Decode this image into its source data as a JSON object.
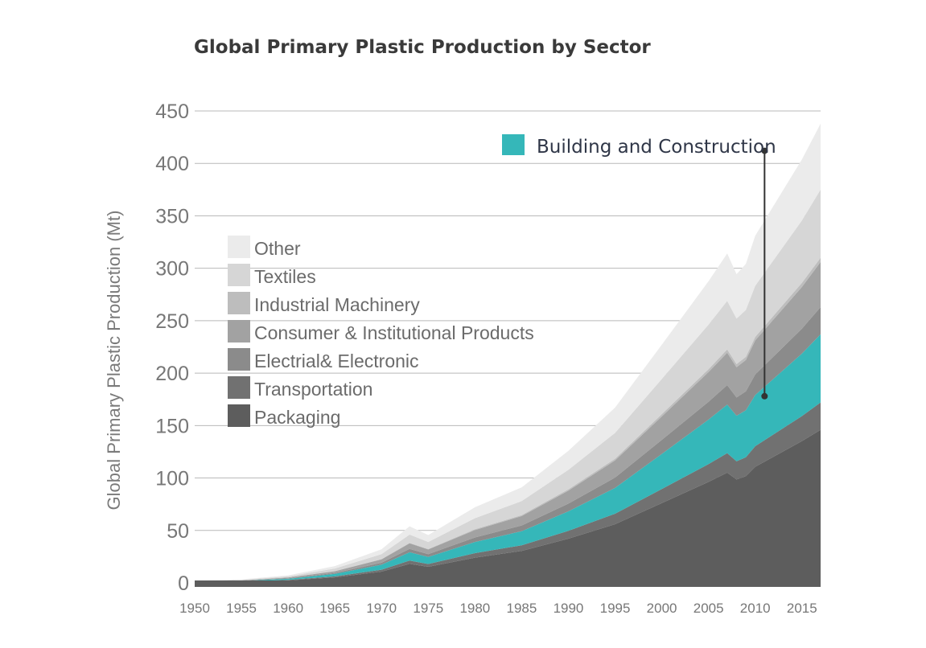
{
  "chart_data": {
    "type": "area",
    "stacked": true,
    "title": "Global Primary Plastic Production by Sector",
    "ylabel": "Global Primary Plastic Production (Mt)",
    "xlabel": "",
    "xlim": [
      1950,
      2017
    ],
    "ylim": [
      0,
      450
    ],
    "y_ticks": [
      0,
      50,
      100,
      150,
      200,
      250,
      300,
      350,
      400,
      450
    ],
    "x_ticks": [
      1950,
      1955,
      1960,
      1965,
      1970,
      1975,
      1980,
      1985,
      1990,
      1995,
      2000,
      2005,
      2010,
      2015
    ],
    "grid": "horizontal",
    "legend_position": "left",
    "x": [
      1950,
      1955,
      1960,
      1965,
      1970,
      1973,
      1975,
      1980,
      1985,
      1990,
      1995,
      2000,
      2005,
      2007,
      2008,
      2009,
      2010,
      2015,
      2017
    ],
    "series": [
      {
        "name": "Packaging",
        "color": "#5d5d5d",
        "values": [
          0.8,
          1.2,
          2.4,
          5.3,
          10.7,
          18.1,
          15.3,
          24.1,
          30.5,
          42.2,
          56.0,
          76.1,
          96.3,
          105.1,
          98.6,
          101.8,
          110.7,
          135.2,
          146.0
        ]
      },
      {
        "name": "Transportation",
        "color": "#717171",
        "values": [
          0.1,
          0.2,
          0.5,
          0.9,
          1.9,
          3.2,
          2.7,
          4.3,
          5.4,
          7.4,
          9.9,
          13.4,
          17.0,
          18.6,
          17.4,
          18.0,
          19.6,
          23.9,
          26.0
        ]
      },
      {
        "name": "Building and Construction",
        "color": "#35b7b9",
        "values": [
          0.3,
          0.5,
          1.0,
          2.4,
          4.7,
          7.9,
          6.7,
          10.6,
          13.4,
          18.6,
          24.6,
          33.5,
          42.4,
          46.3,
          43.4,
          44.8,
          48.8,
          59.5,
          65.0
        ]
      },
      {
        "name": "Electrial& Electronic",
        "color": "#8b8b8b",
        "values": [
          0.1,
          0.2,
          0.5,
          0.9,
          1.9,
          3.2,
          2.7,
          4.3,
          5.4,
          7.4,
          9.9,
          13.4,
          17.0,
          18.6,
          17.4,
          18.0,
          19.6,
          23.9,
          26.0
        ]
      },
      {
        "name": "Consumer & Institutional Products",
        "color": "#a2a2a2",
        "values": [
          0.2,
          0.3,
          0.7,
          1.6,
          3.2,
          5.3,
          4.5,
          7.1,
          9.0,
          12.4,
          16.4,
          22.3,
          28.3,
          30.9,
          28.9,
          29.9,
          32.5,
          39.7,
          43.0
        ]
      },
      {
        "name": "Industrial Machinery",
        "color": "#bdbdbd",
        "values": [
          0.0,
          0.0,
          0.1,
          0.2,
          0.3,
          0.5,
          0.4,
          0.7,
          0.9,
          1.2,
          1.6,
          2.2,
          2.8,
          3.1,
          2.9,
          3.0,
          3.3,
          4.0,
          4.0
        ]
      },
      {
        "name": "Textiles",
        "color": "#d6d6d6",
        "values": [
          0.3,
          0.5,
          1.0,
          2.4,
          4.7,
          7.9,
          6.7,
          10.6,
          13.4,
          18.6,
          24.6,
          33.5,
          42.4,
          46.3,
          43.4,
          44.8,
          48.8,
          59.5,
          65.0
        ]
      },
      {
        "name": "Other",
        "color": "#ebebeb",
        "values": [
          0.3,
          0.5,
          1.0,
          2.3,
          4.6,
          7.9,
          6.6,
          10.4,
          13.1,
          18.1,
          24.1,
          32.7,
          41.4,
          45.2,
          42.4,
          43.8,
          47.7,
          58.1,
          63.0
        ]
      }
    ],
    "legend": [
      "Other",
      "Textiles",
      "Industrial Machinery",
      "Consumer & Institutional Products",
      "Electrial& Electronic",
      "Transportation",
      "Packaging"
    ],
    "annotation": {
      "label": "Building and Construction",
      "color": "#35b7b9",
      "x": 2011,
      "y_from": 178,
      "y_to": 412
    }
  }
}
